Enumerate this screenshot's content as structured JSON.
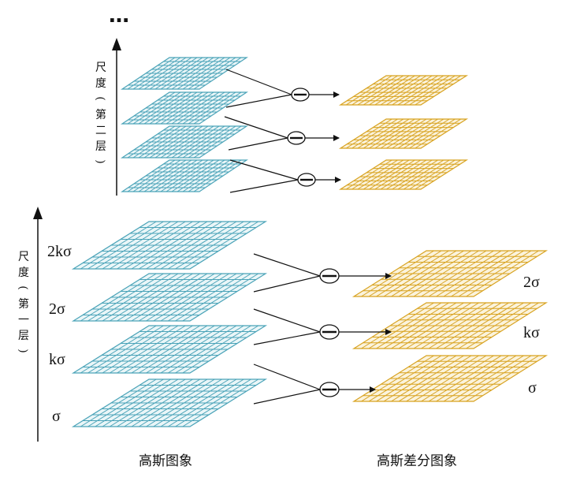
{
  "ellipsis": "…",
  "upper_axis_label": [
    "尺",
    "度",
    "(",
    "第",
    "二",
    "层",
    ")"
  ],
  "lower_axis_label": [
    "尺",
    "度",
    "(",
    "第",
    "一",
    "层",
    ")"
  ],
  "gaussian_scale_labels": [
    "2kσ",
    "2σ",
    "kσ",
    "σ"
  ],
  "dog_scale_labels": [
    "2σ",
    "kσ",
    "σ"
  ],
  "minus_symbol": "−",
  "caption_gaussian": "高斯图象",
  "caption_dog": "高斯差分图象",
  "colors": {
    "gaussian_grid": "#4aa3b8",
    "gaussian_fill": "#eaf6f8",
    "dog_grid": "#d8a21f",
    "dog_fill": "#fbf3dc",
    "lines": "#111111"
  }
}
